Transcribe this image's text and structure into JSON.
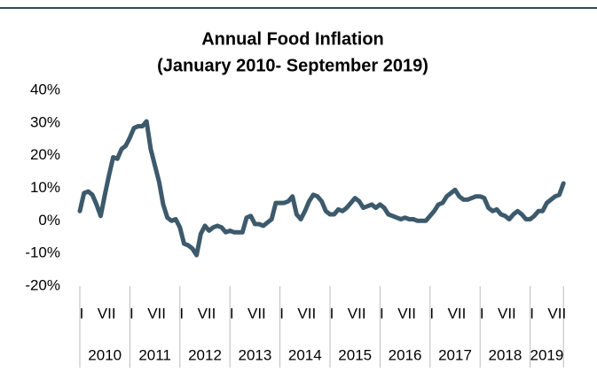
{
  "chart_data": {
    "type": "line",
    "title": "Annual Food Inflation",
    "subtitle": "(January 2010- September 2019)",
    "categories": [
      "I",
      null,
      null,
      null,
      null,
      null,
      "VII",
      null,
      null,
      null,
      null,
      null,
      "I",
      null,
      null,
      null,
      null,
      null,
      "VII",
      null,
      null,
      null,
      null,
      null,
      "I",
      null,
      null,
      null,
      null,
      null,
      "VII",
      null,
      null,
      null,
      null,
      null,
      "I",
      null,
      null,
      null,
      null,
      null,
      "VII",
      null,
      null,
      null,
      null,
      null,
      "I",
      null,
      null,
      null,
      null,
      null,
      "VII",
      null,
      null,
      null,
      null,
      null,
      "I",
      null,
      null,
      null,
      null,
      null,
      "VII",
      null,
      null,
      null,
      null,
      null,
      "I",
      null,
      null,
      null,
      null,
      null,
      "VII",
      null,
      null,
      null,
      null,
      null,
      "I",
      null,
      null,
      null,
      null,
      null,
      "VII",
      null,
      null,
      null,
      null,
      null,
      "I",
      null,
      null,
      null,
      null,
      null,
      "VII",
      null,
      null,
      null,
      null,
      null,
      "I",
      null,
      null,
      null,
      null,
      null,
      "VII",
      null,
      null
    ],
    "year_labels": [
      "2010",
      "2011",
      "2012",
      "2013",
      "2014",
      "2015",
      "2016",
      "2017",
      "2018",
      "2019"
    ],
    "values": [
      3,
      8.5,
      9,
      8,
      5,
      1.5,
      8,
      14,
      19.5,
      19,
      22,
      23,
      25.5,
      28.5,
      29,
      29,
      30.5,
      22,
      17,
      12,
      5,
      1,
      0,
      0.5,
      -2,
      -7,
      -7.5,
      -8.5,
      -10.5,
      -4,
      -1.5,
      -3,
      -2,
      -1.5,
      -2,
      -3.5,
      -3,
      -3.5,
      -3.5,
      -3.5,
      1,
      1.5,
      -1,
      -1,
      -1.5,
      -0.5,
      0.5,
      5.5,
      5.5,
      5.5,
      6,
      7.5,
      2,
      0.5,
      3,
      6,
      8,
      7.5,
      6,
      3,
      2,
      2,
      3.5,
      3,
      4,
      5.5,
      7,
      6,
      4,
      4.5,
      5,
      4,
      5,
      4,
      2,
      1.5,
      1,
      0.5,
      1,
      0.5,
      0.5,
      0,
      0,
      0,
      1.5,
      3,
      5,
      5.5,
      7.5,
      8.5,
      9.5,
      7.5,
      6.5,
      6.5,
      7,
      7.5,
      7.5,
      7,
      4,
      3,
      3.5,
      2,
      1.5,
      0.5,
      2,
      3,
      2,
      0.5,
      0.5,
      1.5,
      3,
      3,
      5.5,
      6.5,
      7.5,
      8,
      11.5
    ],
    "color": "#3d5a6c",
    "ylim": [
      -20,
      40
    ],
    "yticks": [
      {
        "value": -20,
        "label": "-20%"
      },
      {
        "value": -10,
        "label": "-10%"
      },
      {
        "value": 0,
        "label": "0%"
      },
      {
        "value": 10,
        "label": "10%"
      },
      {
        "value": 20,
        "label": "20%"
      },
      {
        "value": 30,
        "label": "30%"
      },
      {
        "value": 40,
        "label": "40%"
      }
    ]
  }
}
